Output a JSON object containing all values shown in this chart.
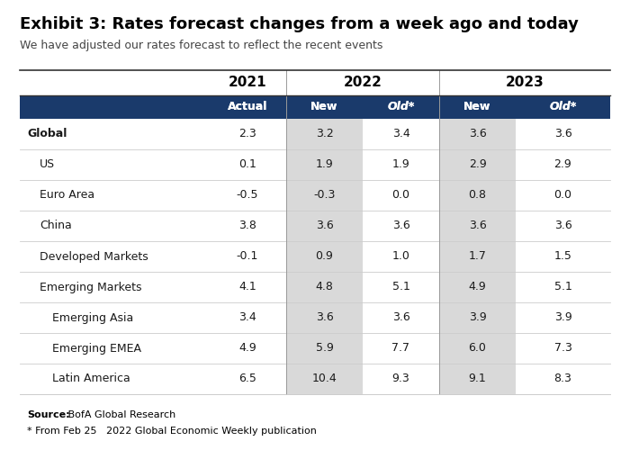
{
  "title": "Exhibit 3: Rates forecast changes from a week ago and today",
  "subtitle": "We have adjusted our rates forecast to reflect the recent events",
  "rows": [
    {
      "label": "Global",
      "bold": true,
      "indent": 0,
      "values": [
        "2.3",
        "3.2",
        "3.4",
        "3.6",
        "3.6"
      ]
    },
    {
      "label": "US",
      "bold": false,
      "indent": 1,
      "values": [
        "0.1",
        "1.9",
        "1.9",
        "2.9",
        "2.9"
      ]
    },
    {
      "label": "Euro Area",
      "bold": false,
      "indent": 1,
      "values": [
        "-0.5",
        "-0.3",
        "0.0",
        "0.8",
        "0.0"
      ]
    },
    {
      "label": "China",
      "bold": false,
      "indent": 1,
      "values": [
        "3.8",
        "3.6",
        "3.6",
        "3.6",
        "3.6"
      ]
    },
    {
      "label": "Developed Markets",
      "bold": false,
      "indent": 1,
      "values": [
        "-0.1",
        "0.9",
        "1.0",
        "1.7",
        "1.5"
      ]
    },
    {
      "label": "Emerging Markets",
      "bold": false,
      "indent": 1,
      "values": [
        "4.1",
        "4.8",
        "5.1",
        "4.9",
        "5.1"
      ]
    },
    {
      "label": "Emerging Asia",
      "bold": false,
      "indent": 2,
      "values": [
        "3.4",
        "3.6",
        "3.6",
        "3.9",
        "3.9"
      ]
    },
    {
      "label": "Emerging EMEA",
      "bold": false,
      "indent": 2,
      "values": [
        "4.9",
        "5.9",
        "7.7",
        "6.0",
        "7.3"
      ]
    },
    {
      "label": "Latin America",
      "bold": false,
      "indent": 2,
      "values": [
        "6.5",
        "10.4",
        "9.3",
        "9.1",
        "8.3"
      ]
    }
  ],
  "source_bold": "Source:",
  "source_rest": " BofA Global Research",
  "footnote": "* From Feb 25   2022 Global Economic Weekly publication",
  "header_bg": "#1a3a6b",
  "header_fg": "#ffffff",
  "shaded_bg": "#d9d9d9",
  "white_bg": "#ffffff",
  "body_fg": "#1a1a1a",
  "title_fg": "#000000",
  "sub_fg": "#444444",
  "year_fg": "#000000",
  "divider_color": "#999999",
  "row_line_color": "#cccccc"
}
